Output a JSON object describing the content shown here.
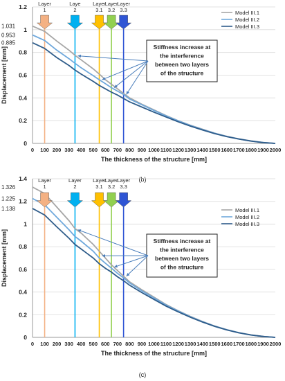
{
  "chart_data": [
    {
      "type": "line",
      "panel_label": "(b)",
      "title": "",
      "xlabel": "The thickness of the structure [mm]",
      "ylabel": "Displacement [mm]",
      "xlim": [
        0,
        2000
      ],
      "ylim": [
        0,
        1.2
      ],
      "x_ticks": [
        0,
        100,
        200,
        300,
        400,
        500,
        600,
        700,
        800,
        900,
        1000,
        1100,
        1200,
        1300,
        1400,
        1500,
        1600,
        1700,
        1800,
        1900,
        2000
      ],
      "y_ticks": [
        0,
        0.2,
        0.4,
        0.6,
        0.8,
        1,
        1.2
      ],
      "grid": "horizontal",
      "legend_position": "top-right",
      "start_labels": [
        "1.031",
        "0.953",
        "0.885"
      ],
      "x": [
        0,
        100,
        200,
        300,
        350,
        400,
        500,
        550,
        600,
        650,
        700,
        750,
        800,
        900,
        1000,
        1100,
        1200,
        1300,
        1400,
        1500,
        1600,
        1700,
        1800,
        1900,
        2000
      ],
      "series": [
        {
          "name": "Model III.1",
          "color": "#a6a6a6",
          "values": [
            1.031,
            0.985,
            0.9,
            0.82,
            0.775,
            0.735,
            0.655,
            0.61,
            0.56,
            0.52,
            0.48,
            0.44,
            0.4,
            0.345,
            0.295,
            0.245,
            0.2,
            0.16,
            0.125,
            0.09,
            0.062,
            0.04,
            0.022,
            0.008,
            0
          ]
        },
        {
          "name": "Model III.2",
          "color": "#6fa8dc",
          "values": [
            0.953,
            0.905,
            0.82,
            0.745,
            0.705,
            0.665,
            0.595,
            0.56,
            0.525,
            0.49,
            0.46,
            0.43,
            0.39,
            0.34,
            0.29,
            0.242,
            0.198,
            0.158,
            0.122,
            0.089,
            0.061,
            0.039,
            0.021,
            0.008,
            0
          ]
        },
        {
          "name": "Model III.3",
          "color": "#2e5c8a",
          "values": [
            0.885,
            0.835,
            0.755,
            0.685,
            0.645,
            0.61,
            0.545,
            0.51,
            0.48,
            0.45,
            0.425,
            0.395,
            0.365,
            0.32,
            0.275,
            0.232,
            0.19,
            0.152,
            0.118,
            0.086,
            0.059,
            0.038,
            0.02,
            0.007,
            0
          ]
        }
      ],
      "layers": [
        {
          "label": "Layer 1",
          "x": 100,
          "color": "#f4b183"
        },
        {
          "label": "Laye 2",
          "x": 350,
          "color": "#00b0f0"
        },
        {
          "label": "Layer 3.1",
          "x": 550,
          "color": "#ffc000"
        },
        {
          "label": "Layer 3.2",
          "x": 650,
          "color": "#92d050"
        },
        {
          "label": "Layer 3.3",
          "x": 750,
          "color": "#2f55d4"
        }
      ],
      "annotation": {
        "lines": [
          "Stiffness increase at",
          "the interference",
          "between two layers",
          "of the structure"
        ],
        "targets": [
          [
            350,
            0.77
          ],
          [
            550,
            0.56
          ],
          [
            650,
            0.49
          ],
          [
            750,
            0.43
          ]
        ]
      }
    },
    {
      "type": "line",
      "panel_label": "(c)",
      "title": "",
      "xlabel": "The thickness of the structure [mm]",
      "ylabel": "Displacement [mm]",
      "xlim": [
        0,
        2000
      ],
      "ylim": [
        0,
        1.4
      ],
      "x_ticks": [
        0,
        100,
        200,
        300,
        400,
        500,
        600,
        700,
        800,
        900,
        1000,
        1100,
        1200,
        1300,
        1400,
        1500,
        1600,
        1700,
        1800,
        1900,
        2000
      ],
      "y_ticks": [
        0,
        0.2,
        0.4,
        0.6,
        0.8,
        1,
        1.2,
        1.4
      ],
      "grid": "horizontal",
      "legend_position": "top-right",
      "start_labels": [
        "1.326",
        "1.225",
        "1.138"
      ],
      "x": [
        0,
        100,
        200,
        300,
        350,
        400,
        500,
        550,
        600,
        650,
        700,
        750,
        800,
        900,
        1000,
        1100,
        1200,
        1300,
        1400,
        1500,
        1600,
        1700,
        1800,
        1900,
        2000
      ],
      "series": [
        {
          "name": "Model III.1",
          "color": "#a6a6a6",
          "values": [
            1.326,
            1.27,
            1.15,
            1.03,
            0.96,
            0.92,
            0.82,
            0.76,
            0.7,
            0.64,
            0.59,
            0.54,
            0.49,
            0.42,
            0.355,
            0.29,
            0.235,
            0.185,
            0.14,
            0.1,
            0.068,
            0.042,
            0.022,
            0.008,
            0
          ]
        },
        {
          "name": "Model III.2",
          "color": "#6fa8dc",
          "values": [
            1.225,
            1.17,
            1.06,
            0.95,
            0.89,
            0.85,
            0.76,
            0.7,
            0.655,
            0.61,
            0.565,
            0.525,
            0.48,
            0.41,
            0.348,
            0.285,
            0.232,
            0.182,
            0.138,
            0.099,
            0.067,
            0.041,
            0.021,
            0.008,
            0
          ]
        },
        {
          "name": "Model III.3",
          "color": "#2e5c8a",
          "values": [
            1.138,
            1.08,
            0.975,
            0.875,
            0.82,
            0.78,
            0.7,
            0.65,
            0.61,
            0.575,
            0.535,
            0.5,
            0.46,
            0.395,
            0.335,
            0.276,
            0.225,
            0.178,
            0.135,
            0.097,
            0.066,
            0.04,
            0.021,
            0.008,
            0
          ]
        }
      ],
      "layers": [
        {
          "label": "Layer 1",
          "x": 100,
          "color": "#f4b183"
        },
        {
          "label": "Layer 2",
          "x": 350,
          "color": "#00b0f0"
        },
        {
          "label": "Layer 3.1",
          "x": 550,
          "color": "#ffc000"
        },
        {
          "label": "Layer 3.2",
          "x": 650,
          "color": "#92d050"
        },
        {
          "label": "Layer 3.3",
          "x": 750,
          "color": "#2f55d4"
        }
      ],
      "annotation": {
        "lines": [
          "Stiffness increase at",
          "the interference",
          "between two layers",
          "of the structure"
        ],
        "targets": [
          [
            350,
            0.95
          ],
          [
            550,
            0.72
          ],
          [
            650,
            0.62
          ],
          [
            750,
            0.54
          ]
        ]
      }
    }
  ]
}
